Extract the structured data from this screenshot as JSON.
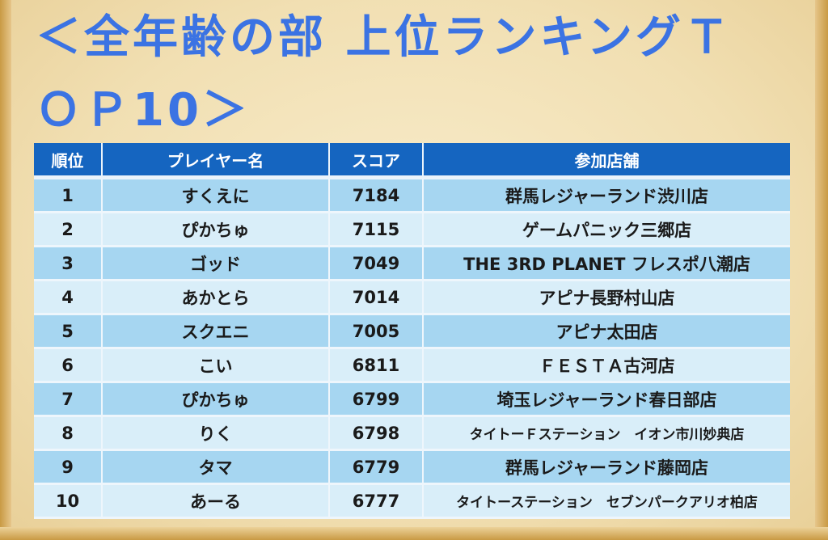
{
  "title": "＜全年齢の部 上位ランキングＴＯＰ10＞",
  "table": {
    "headers": [
      "順位",
      "プレイヤー名",
      "スコア",
      "参加店舗"
    ],
    "rows": [
      {
        "rank": "1",
        "player": "すくえに",
        "score": "7184",
        "store": "群馬レジャーランド渋川店"
      },
      {
        "rank": "2",
        "player": "ぴかちゅ",
        "score": "7115",
        "store": "ゲームパニック三郷店"
      },
      {
        "rank": "3",
        "player": "ゴッド",
        "score": "7049",
        "store": "THE 3RD PLANET フレスポ八潮店"
      },
      {
        "rank": "4",
        "player": "あかとら",
        "score": "7014",
        "store": "アピナ長野村山店"
      },
      {
        "rank": "5",
        "player": "スクエニ",
        "score": "7005",
        "store": "アピナ太田店"
      },
      {
        "rank": "6",
        "player": "こい",
        "score": "6811",
        "store": "ＦＥＳＴＡ古河店"
      },
      {
        "rank": "7",
        "player": "ぴかちゅ",
        "score": "6799",
        "store": "埼玉レジャーランド春日部店"
      },
      {
        "rank": "8",
        "player": "りく",
        "score": "6798",
        "store": "タイトーＦステーション　イオン市川妙典店"
      },
      {
        "rank": "9",
        "player": "タマ",
        "score": "6779",
        "store": "群馬レジャーランド藤岡店"
      },
      {
        "rank": "10",
        "player": "あーる",
        "score": "6777",
        "store": "タイトーステーション　セブンパークアリオ柏店"
      }
    ]
  },
  "colors": {
    "title": "#3b73e3",
    "header_bg": "#1565c0",
    "row_dark": "#a6d6f1",
    "row_light": "#d9eef9",
    "rank_text": "#1f4fb4"
  }
}
